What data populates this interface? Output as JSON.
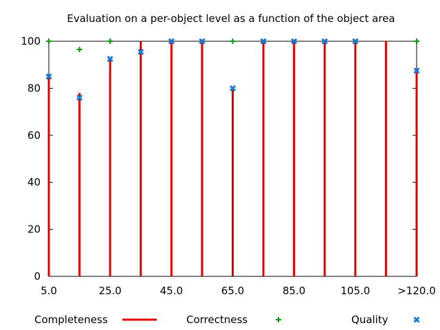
{
  "chart_data": {
    "type": "bar",
    "title": "Evaluation on a per-object level as a function of the object area",
    "xlabel": "",
    "ylabel": "",
    "ylim": [
      0,
      100
    ],
    "y_ticks": [
      0,
      20,
      40,
      60,
      80,
      100
    ],
    "x_tick_labels": [
      "5.0",
      "25.0",
      "45.0",
      "65.0",
      "85.0",
      "105.0",
      ">120.0"
    ],
    "categories": [
      "5.0",
      "15.0",
      "25.0",
      "35.0",
      "45.0",
      "55.0",
      "65.0",
      "75.0",
      "85.0",
      "95.0",
      "105.0",
      "115.0",
      ">120.0"
    ],
    "grid": false,
    "legend_position": "bottom",
    "series": [
      {
        "name": "Completeness",
        "style": "impulses",
        "color": "#e00000",
        "values": [
          85,
          78,
          93,
          100,
          100,
          100,
          80,
          100,
          100,
          100,
          100,
          100,
          88
        ]
      },
      {
        "name": "Correctness",
        "style": "plus",
        "color": "#00a000",
        "values": [
          100,
          96.5,
          100,
          null,
          null,
          null,
          100,
          null,
          null,
          null,
          null,
          null,
          100
        ]
      },
      {
        "name": "Quality",
        "style": "x",
        "color": "#1a7ad6",
        "values": [
          85,
          76,
          92.5,
          95.5,
          100,
          100,
          80,
          100,
          100,
          100,
          100,
          null,
          87.5
        ]
      }
    ]
  }
}
